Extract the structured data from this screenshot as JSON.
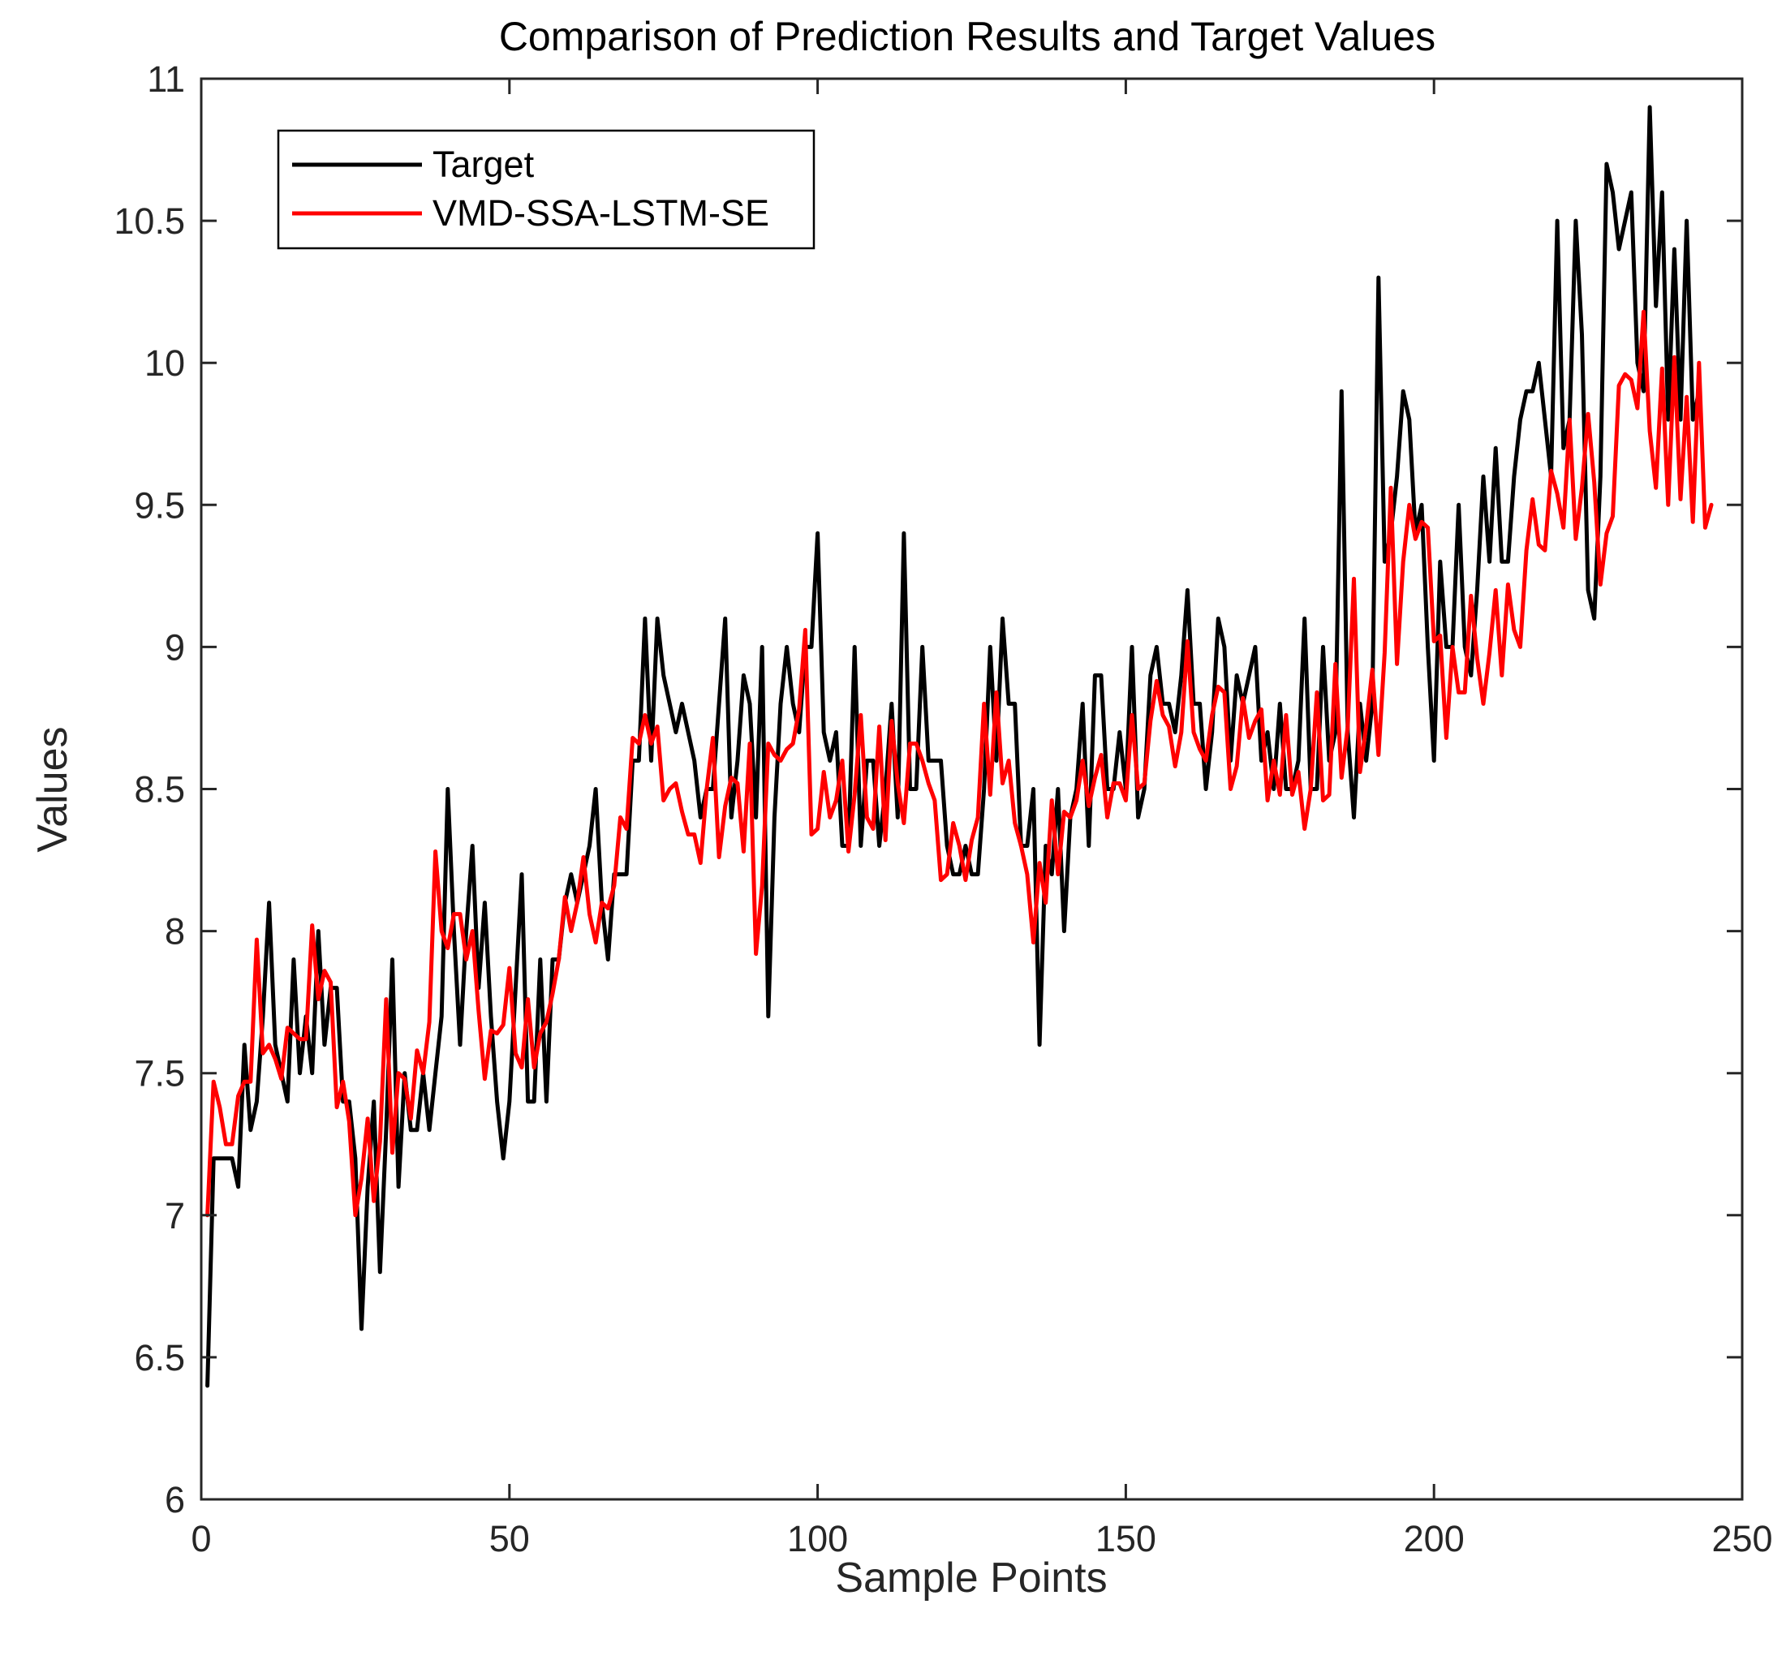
{
  "chart_data": {
    "type": "line",
    "title": "Comparison of Prediction Results and Target Values",
    "xlabel": "Sample Points",
    "ylabel": "Values",
    "xlim": [
      0,
      250
    ],
    "ylim": [
      6,
      11
    ],
    "xticks": [
      0,
      50,
      100,
      150,
      200,
      250
    ],
    "yticks": [
      6,
      6.5,
      7,
      7.5,
      8,
      8.5,
      9,
      9.5,
      10,
      10.5,
      11
    ],
    "xtick_labels": [
      "0",
      "50",
      "100",
      "150",
      "200",
      "250"
    ],
    "ytick_labels": [
      "6",
      "6.5",
      "7",
      "7.5",
      "8",
      "8.5",
      "9",
      "9.5",
      "10",
      "10.5",
      "11"
    ],
    "grid": false,
    "legend_position": "top-left",
    "series": [
      {
        "name": "Target",
        "color": "#000000",
        "values": [
          6.4,
          7.2,
          7.2,
          7.2,
          7.2,
          7.1,
          7.6,
          7.3,
          7.4,
          7.7,
          8.1,
          7.6,
          7.5,
          7.4,
          7.9,
          7.5,
          7.7,
          7.5,
          8.0,
          7.6,
          7.8,
          7.8,
          7.4,
          7.4,
          7.2,
          6.6,
          7.1,
          7.4,
          6.8,
          7.3,
          7.9,
          7.1,
          7.5,
          7.3,
          7.3,
          7.5,
          7.3,
          7.5,
          7.7,
          8.5,
          8.0,
          7.6,
          8.0,
          8.3,
          7.8,
          8.1,
          7.7,
          7.4,
          7.2,
          7.4,
          7.8,
          8.2,
          7.4,
          7.4,
          7.9,
          7.4,
          7.9,
          7.9,
          8.1,
          8.2,
          8.1,
          8.2,
          8.3,
          8.5,
          8.1,
          7.9,
          8.2,
          8.2,
          8.2,
          8.6,
          8.6,
          9.1,
          8.6,
          9.1,
          8.9,
          8.8,
          8.7,
          8.8,
          8.7,
          8.6,
          8.4,
          8.5,
          8.5,
          8.8,
          9.1,
          8.4,
          8.6,
          8.9,
          8.8,
          8.4,
          9.0,
          7.7,
          8.4,
          8.8,
          9.0,
          8.8,
          8.7,
          9.0,
          9.0,
          9.4,
          8.7,
          8.6,
          8.7,
          8.3,
          8.3,
          9.0,
          8.3,
          8.6,
          8.6,
          8.3,
          8.5,
          8.8,
          8.4,
          9.4,
          8.5,
          8.5,
          9.0,
          8.6,
          8.6,
          8.6,
          8.3,
          8.2,
          8.2,
          8.3,
          8.2,
          8.2,
          8.5,
          9.0,
          8.6,
          9.1,
          8.8,
          8.8,
          8.3,
          8.3,
          8.5,
          7.6,
          8.3,
          8.2,
          8.5,
          8.0,
          8.4,
          8.5,
          8.8,
          8.3,
          8.9,
          8.9,
          8.5,
          8.5,
          8.7,
          8.5,
          9.0,
          8.4,
          8.5,
          8.9,
          9.0,
          8.8,
          8.8,
          8.7,
          8.9,
          9.2,
          8.8,
          8.8,
          8.5,
          8.7,
          9.1,
          9.0,
          8.6,
          8.9,
          8.8,
          8.9,
          9.0,
          8.6,
          8.7,
          8.5,
          8.8,
          8.5,
          8.5,
          8.6,
          9.1,
          8.5,
          8.5,
          9.0,
          8.6,
          8.7,
          9.9,
          8.7,
          8.4,
          8.8,
          8.6,
          8.8,
          10.3,
          9.3,
          9.4,
          9.6,
          9.9,
          9.8,
          9.4,
          9.5,
          9.0,
          8.6,
          9.3,
          9.0,
          9.0,
          9.5,
          9.0,
          8.9,
          9.2,
          9.6,
          9.3,
          9.7,
          9.3,
          9.3,
          9.6,
          9.8,
          9.9,
          9.9,
          10.0,
          9.8,
          9.6,
          10.5,
          9.7,
          9.8,
          10.5,
          10.1,
          9.2,
          9.1,
          9.6,
          10.7,
          10.6,
          10.4,
          10.5,
          10.6,
          10.0,
          9.9,
          10.9,
          10.2,
          10.6,
          9.8,
          10.4,
          9.8,
          10.5,
          9.8,
          9.9
        ]
      },
      {
        "name": "VMD-SSA-LSTM-SE",
        "color": "#ff0000",
        "values": [
          7.0,
          7.47,
          7.38,
          7.25,
          7.25,
          7.42,
          7.47,
          7.47,
          7.97,
          7.57,
          7.6,
          7.55,
          7.48,
          7.66,
          7.64,
          7.62,
          7.62,
          8.02,
          7.76,
          7.86,
          7.82,
          7.38,
          7.47,
          7.33,
          7.0,
          7.13,
          7.34,
          7.05,
          7.26,
          7.76,
          7.22,
          7.5,
          7.48,
          7.34,
          7.58,
          7.5,
          7.68,
          8.28,
          8.0,
          7.94,
          8.06,
          8.06,
          7.9,
          8.0,
          7.72,
          7.48,
          7.65,
          7.64,
          7.67,
          7.87,
          7.57,
          7.52,
          7.76,
          7.52,
          7.64,
          7.68,
          7.78,
          7.9,
          8.12,
          8.0,
          8.1,
          8.26,
          8.06,
          7.96,
          8.1,
          8.08,
          8.16,
          8.4,
          8.36,
          8.68,
          8.66,
          8.76,
          8.66,
          8.72,
          8.46,
          8.5,
          8.52,
          8.42,
          8.34,
          8.34,
          8.24,
          8.5,
          8.68,
          8.26,
          8.44,
          8.54,
          8.52,
          8.28,
          8.66,
          7.92,
          8.16,
          8.66,
          8.62,
          8.6,
          8.64,
          8.66,
          8.78,
          9.06,
          8.34,
          8.36,
          8.56,
          8.4,
          8.46,
          8.6,
          8.28,
          8.48,
          8.76,
          8.4,
          8.36,
          8.72,
          8.32,
          8.74,
          8.52,
          8.38,
          8.66,
          8.66,
          8.6,
          8.52,
          8.46,
          8.18,
          8.2,
          8.38,
          8.3,
          8.18,
          8.32,
          8.4,
          8.8,
          8.48,
          8.84,
          8.52,
          8.6,
          8.38,
          8.3,
          8.2,
          7.96,
          8.24,
          8.1,
          8.46,
          8.2,
          8.42,
          8.4,
          8.46,
          8.6,
          8.44,
          8.54,
          8.62,
          8.4,
          8.52,
          8.52,
          8.46,
          8.76,
          8.5,
          8.52,
          8.74,
          8.88,
          8.76,
          8.72,
          8.58,
          8.7,
          9.02,
          8.7,
          8.64,
          8.6,
          8.76,
          8.86,
          8.84,
          8.5,
          8.58,
          8.82,
          8.68,
          8.74,
          8.78,
          8.46,
          8.6,
          8.48,
          8.76,
          8.48,
          8.56,
          8.36,
          8.5,
          8.84,
          8.46,
          8.48,
          8.94,
          8.54,
          8.72,
          9.24,
          8.56,
          8.72,
          8.92,
          8.62,
          8.98,
          9.56,
          8.94,
          9.3,
          9.5,
          9.38,
          9.44,
          9.42,
          9.02,
          9.04,
          8.68,
          9.0,
          8.84,
          8.84,
          9.18,
          8.96,
          8.8,
          8.98,
          9.2,
          8.9,
          9.22,
          9.06,
          9.0,
          9.34,
          9.52,
          9.36,
          9.34,
          9.62,
          9.54,
          9.42,
          9.8,
          9.38,
          9.56,
          9.82,
          9.58,
          9.22,
          9.4,
          9.46,
          9.92,
          9.96,
          9.94,
          9.84,
          10.18,
          9.76,
          9.56,
          9.98,
          9.5,
          10.02,
          9.52,
          9.88,
          9.44,
          10.0,
          9.42,
          9.5
        ]
      }
    ]
  }
}
